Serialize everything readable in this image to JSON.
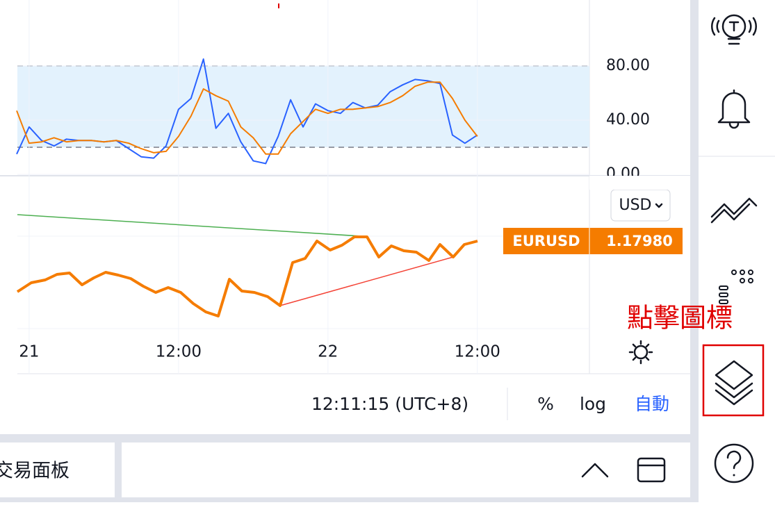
{
  "chart_data": {
    "type": "line",
    "series": [
      {
        "color": "#2962ff",
        "values": [
          15,
          35,
          25,
          21,
          26,
          25,
          25,
          24,
          25,
          19,
          13,
          12,
          21,
          48,
          56,
          85,
          34,
          45,
          24,
          10,
          8,
          28,
          55,
          35,
          52,
          47,
          45,
          53,
          49,
          51,
          61,
          66,
          70,
          69,
          67,
          29,
          23,
          29
        ]
      },
      {
        "color": "#f57c00",
        "values": [
          47,
          23,
          24,
          27,
          24,
          25,
          25,
          24,
          25,
          23,
          19,
          16,
          17,
          28,
          43,
          63,
          58,
          54,
          35,
          27,
          15,
          15,
          30,
          39,
          48,
          45,
          48,
          48,
          49,
          50,
          53,
          58,
          65,
          68,
          68,
          56,
          40,
          28
        ]
      }
    ],
    "band": [
      20,
      80
    ],
    "band_color": "#e3f2fd",
    "xlim": [
      0,
      46
    ],
    "ylim": [
      -2,
      126
    ],
    "xticks": [
      {
        "value": 1,
        "label": "21"
      },
      {
        "value": 13,
        "label": "12:00"
      },
      {
        "value": 25,
        "label": "22"
      },
      {
        "value": 37,
        "label": "12:00"
      }
    ],
    "yticks": [
      {
        "value": 80,
        "label": "80.00"
      },
      {
        "value": 40,
        "label": "40.00"
      },
      {
        "value": 0,
        "label": "0.00"
      }
    ]
  },
  "price": {
    "currency": "USD",
    "symbol": "EURUSD",
    "last": "1.17980"
  },
  "status": {
    "time": "12:11:15 (UTC+8)",
    "percent": "%",
    "log": "log",
    "auto": "自動"
  },
  "panel": {
    "title": "交易面板"
  },
  "annotation": "點擊圖標"
}
